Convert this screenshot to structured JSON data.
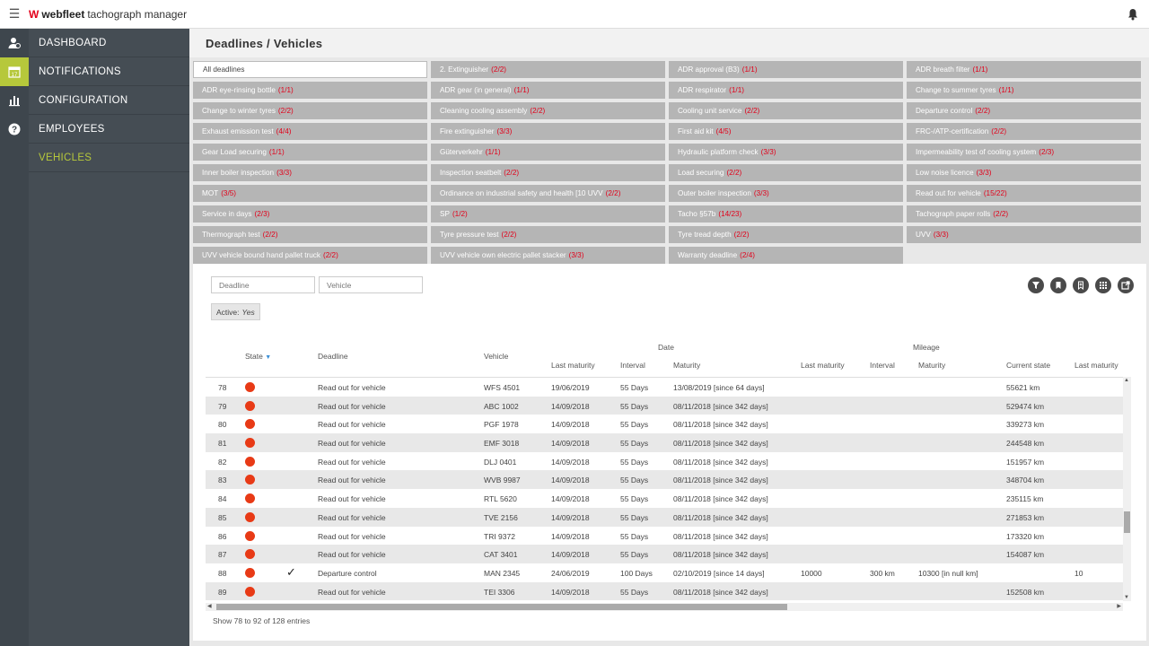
{
  "app": {
    "brand_logo": "W",
    "brand_bold": "webfleet",
    "brand_rest": "tachograph manager"
  },
  "nav": {
    "items": [
      {
        "label": "DASHBOARD",
        "icon": "dashboard-user-icon"
      },
      {
        "label": "NOTIFICATIONS",
        "icon": "calendar-17-icon"
      },
      {
        "label": "CONFIGURATION",
        "icon": "bar-chart-icon"
      },
      {
        "label": "EMPLOYEES",
        "icon": "help-circle-icon"
      },
      {
        "label": "VEHICLES",
        "icon": ""
      }
    ],
    "active": "VEHICLES"
  },
  "breadcrumb": "Deadlines / Vehicles",
  "deadline_tiles": [
    {
      "label": "All deadlines",
      "count": ""
    },
    {
      "label": "2. Extinguisher",
      "count": "(2/2)"
    },
    {
      "label": "ADR approval (B3)",
      "count": "(1/1)"
    },
    {
      "label": "ADR breath filter",
      "count": "(1/1)"
    },
    {
      "label": "ADR eye-rinsing bottle",
      "count": "(1/1)"
    },
    {
      "label": "ADR gear (in general)",
      "count": "(1/1)"
    },
    {
      "label": "ADR respirator",
      "count": "(1/1)"
    },
    {
      "label": "Change to summer tyres",
      "count": "(1/1)"
    },
    {
      "label": "Change to winter tyres",
      "count": "(2/2)"
    },
    {
      "label": "Cleaning cooling assembly",
      "count": "(2/2)"
    },
    {
      "label": "Cooling unit service",
      "count": "(2/2)"
    },
    {
      "label": "Departure control",
      "count": "(2/2)"
    },
    {
      "label": "Exhaust emission test",
      "count": "(4/4)"
    },
    {
      "label": "Fire extinguisher",
      "count": "(3/3)"
    },
    {
      "label": "First aid kit",
      "count": "(4/5)"
    },
    {
      "label": "FRC-/ATP-certification",
      "count": "(2/2)"
    },
    {
      "label": "Gear Load securing",
      "count": "(1/1)"
    },
    {
      "label": "Güterverkehr",
      "count": "(1/1)"
    },
    {
      "label": "Hydraulic platform check",
      "count": "(3/3)"
    },
    {
      "label": "Impermeability test of cooling system",
      "count": "(2/3)"
    },
    {
      "label": "Inner boiler inspection",
      "count": "(3/3)"
    },
    {
      "label": "Inspection seatbelt",
      "count": "(2/2)"
    },
    {
      "label": "Load securing",
      "count": "(2/2)"
    },
    {
      "label": "Low noise licence",
      "count": "(3/3)"
    },
    {
      "label": "MOT",
      "count": "(3/5)"
    },
    {
      "label": "Ordinance on industrial safety and health [10 UVV",
      "count": "(2/2)"
    },
    {
      "label": "Outer boiler inspection",
      "count": "(3/3)"
    },
    {
      "label": "Read out for vehicle",
      "count": "(15/22)"
    },
    {
      "label": "Service in days",
      "count": "(2/3)"
    },
    {
      "label": "SP",
      "count": "(1/2)"
    },
    {
      "label": "Tacho §57b",
      "count": "(14/23)"
    },
    {
      "label": "Tachograph paper rolls",
      "count": "(2/2)"
    },
    {
      "label": "Thermograph test",
      "count": "(2/2)"
    },
    {
      "label": "Tyre pressure test",
      "count": "(2/2)"
    },
    {
      "label": "Tyre tread depth",
      "count": "(2/2)"
    },
    {
      "label": "UVV",
      "count": "(3/3)"
    },
    {
      "label": "UVV vehicle bound hand pallet truck",
      "count": "(2/2)"
    },
    {
      "label": "UVV vehicle own electric pallet stacker",
      "count": "(3/3)"
    },
    {
      "label": "Warranty deadline",
      "count": "(2/4)"
    }
  ],
  "filters": {
    "deadline_placeholder": "Deadline",
    "vehicle_placeholder": "Vehicle",
    "active_label": "Active:",
    "active_value": "Yes"
  },
  "toolbar_icons": [
    "filter-icon",
    "bookmark-icon",
    "bookmark-add-icon",
    "columns-icon",
    "export-icon"
  ],
  "table": {
    "group_date": "Date",
    "group_mileage": "Mileage",
    "headers": {
      "state": "State",
      "deadline": "Deadline",
      "vehicle": "Vehicle",
      "d_last": "Last maturity",
      "d_interval": "Interval",
      "d_maturity": "Maturity",
      "m_last": "Last maturity",
      "m_interval": "Interval",
      "m_maturity": "Maturity",
      "current": "Current state",
      "last2": "Last maturity"
    },
    "rows": [
      {
        "n": "78",
        "check": "",
        "deadline": "Read out for vehicle",
        "vehicle": "WFS 4501",
        "last": "19/06/2019",
        "interval": "55 Days",
        "maturity": "13/08/2019 [since 64 days]",
        "mlast": "",
        "minterval": "",
        "mmaturity": "",
        "current": "55621 km",
        "last2": ""
      },
      {
        "n": "79",
        "check": "",
        "deadline": "Read out for vehicle",
        "vehicle": "ABC 1002",
        "last": "14/09/2018",
        "interval": "55 Days",
        "maturity": "08/11/2018 [since 342 days]",
        "mlast": "",
        "minterval": "",
        "mmaturity": "",
        "current": "529474 km",
        "last2": ""
      },
      {
        "n": "80",
        "check": "",
        "deadline": "Read out for vehicle",
        "vehicle": "PGF 1978",
        "last": "14/09/2018",
        "interval": "55 Days",
        "maturity": "08/11/2018 [since 342 days]",
        "mlast": "",
        "minterval": "",
        "mmaturity": "",
        "current": "339273 km",
        "last2": ""
      },
      {
        "n": "81",
        "check": "",
        "deadline": "Read out for vehicle",
        "vehicle": "EMF 3018",
        "last": "14/09/2018",
        "interval": "55 Days",
        "maturity": "08/11/2018 [since 342 days]",
        "mlast": "",
        "minterval": "",
        "mmaturity": "",
        "current": "244548 km",
        "last2": ""
      },
      {
        "n": "82",
        "check": "",
        "deadline": "Read out for vehicle",
        "vehicle": "DLJ 0401",
        "last": "14/09/2018",
        "interval": "55 Days",
        "maturity": "08/11/2018 [since 342 days]",
        "mlast": "",
        "minterval": "",
        "mmaturity": "",
        "current": "151957 km",
        "last2": ""
      },
      {
        "n": "83",
        "check": "",
        "deadline": "Read out for vehicle",
        "vehicle": "WVB 9987",
        "last": "14/09/2018",
        "interval": "55 Days",
        "maturity": "08/11/2018 [since 342 days]",
        "mlast": "",
        "minterval": "",
        "mmaturity": "",
        "current": "348704 km",
        "last2": ""
      },
      {
        "n": "84",
        "check": "",
        "deadline": "Read out for vehicle",
        "vehicle": "RTL 5620",
        "last": "14/09/2018",
        "interval": "55 Days",
        "maturity": "08/11/2018 [since 342 days]",
        "mlast": "",
        "minterval": "",
        "mmaturity": "",
        "current": "235115 km",
        "last2": ""
      },
      {
        "n": "85",
        "check": "",
        "deadline": "Read out for vehicle",
        "vehicle": "TVE 2156",
        "last": "14/09/2018",
        "interval": "55 Days",
        "maturity": "08/11/2018 [since 342 days]",
        "mlast": "",
        "minterval": "",
        "mmaturity": "",
        "current": "271853 km",
        "last2": ""
      },
      {
        "n": "86",
        "check": "",
        "deadline": "Read out for vehicle",
        "vehicle": "TRI 9372",
        "last": "14/09/2018",
        "interval": "55 Days",
        "maturity": "08/11/2018 [since 342 days]",
        "mlast": "",
        "minterval": "",
        "mmaturity": "",
        "current": "173320 km",
        "last2": ""
      },
      {
        "n": "87",
        "check": "",
        "deadline": "Read out for vehicle",
        "vehicle": "CAT 3401",
        "last": "14/09/2018",
        "interval": "55 Days",
        "maturity": "08/11/2018 [since 342 days]",
        "mlast": "",
        "minterval": "",
        "mmaturity": "",
        "current": "154087 km",
        "last2": ""
      },
      {
        "n": "88",
        "check": "✓",
        "deadline": "Departure control",
        "vehicle": "MAN 2345",
        "last": "24/06/2019",
        "interval": "100 Days",
        "maturity": "02/10/2019 [since 14 days]",
        "mlast": "10000",
        "minterval": "300 km",
        "mmaturity": "10300 [in null km]",
        "current": "",
        "last2": "10"
      },
      {
        "n": "89",
        "check": "",
        "deadline": "Read out for vehicle",
        "vehicle": "TEI 3306",
        "last": "14/09/2018",
        "interval": "55 Days",
        "maturity": "08/11/2018 [since 342 days]",
        "mlast": "",
        "minterval": "",
        "mmaturity": "",
        "current": "152508 km",
        "last2": ""
      }
    ]
  },
  "footer": "Show 78 to 92 of 128 entries",
  "colors": {
    "accent": "#b6c83b",
    "count_red": "#e2001a",
    "status_red": "#e83a16",
    "nav_bg": "#454d54"
  }
}
